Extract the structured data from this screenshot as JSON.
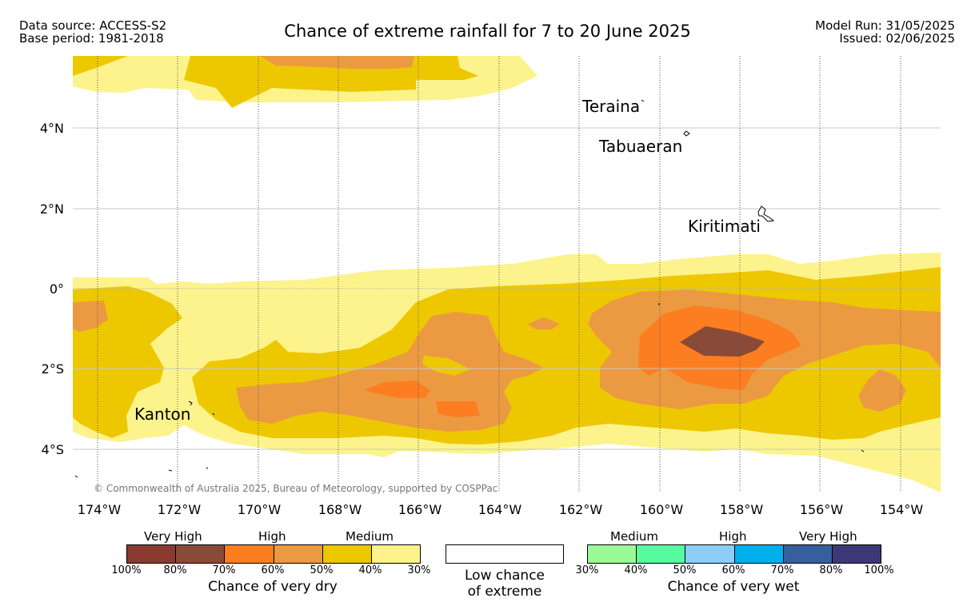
{
  "header": {
    "data_source": "Data source: ACCESS-S2",
    "base_period": "Base period: 1981-2018",
    "title": "Chance of extreme rainfall for 7 to 20 June 2025",
    "model_run": "Model Run: 31/05/2025",
    "issued": "Issued: 02/06/2025"
  },
  "map": {
    "lat_labels": [
      "4°N",
      "2°N",
      "0°",
      "2°S",
      "4°S"
    ],
    "lon_labels": [
      "174°W",
      "172°W",
      "170°W",
      "168°W",
      "166°W",
      "164°W",
      "162°W",
      "160°W",
      "158°W",
      "156°W",
      "154°W"
    ],
    "places": [
      "Teraina",
      "Tabuaeran",
      "Kiritimati",
      "Kanton"
    ],
    "copyright": "© Commonwealth of Australia 2025, Bureau of Meteorology, supported by COSPPac",
    "colors": {
      "dry_30_40": "#fdf38c",
      "dry_40_50": "#edc800",
      "dry_50_60": "#ec9a42",
      "dry_60_70": "#fd7e21",
      "dry_70_80": "#8a4a38"
    }
  },
  "legend": {
    "dry": {
      "categories": [
        "Very High",
        "High",
        "Medium"
      ],
      "ticks": [
        "100%",
        "80%",
        "70%",
        "60%",
        "50%",
        "40%",
        "30%"
      ],
      "colors": [
        "#8b3a30",
        "#8a4a38",
        "#fd7e21",
        "#ec9a42",
        "#edc800",
        "#fdf38c"
      ],
      "caption": "Chance of very dry"
    },
    "low": {
      "line1": "Low chance",
      "line2": "of extreme"
    },
    "wet": {
      "categories": [
        "Medium",
        "High",
        "Very High"
      ],
      "ticks": [
        "30%",
        "40%",
        "50%",
        "60%",
        "70%",
        "80%",
        "100%"
      ],
      "colors": [
        "#9afa98",
        "#57fa9f",
        "#8dcdf8",
        "#00b0ed",
        "#375fa0",
        "#3c3878"
      ],
      "caption": "Chance of very wet"
    }
  }
}
